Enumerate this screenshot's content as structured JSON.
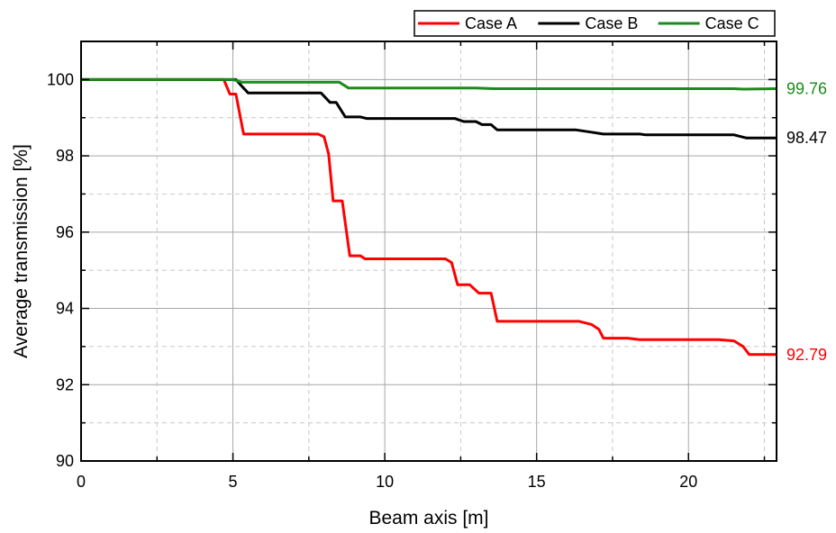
{
  "chart_data": {
    "type": "line",
    "title": "",
    "xlabel": "Beam axis [m]",
    "ylabel": "Average transmission [%]",
    "xlim": [
      0,
      22.9
    ],
    "ylim": [
      90,
      101
    ],
    "x_ticks": [
      0,
      5,
      10,
      15,
      20
    ],
    "y_ticks": [
      90,
      92,
      94,
      96,
      98,
      100
    ],
    "x_minor_ticks": [
      2.5,
      7.5,
      12.5,
      17.5,
      22.5
    ],
    "y_minor_ticks": [
      91,
      93,
      95,
      97,
      99
    ],
    "grid": true,
    "legend_position": "top-right",
    "series": [
      {
        "name": "Case A",
        "color": "#ff0000",
        "end_label": "92.79",
        "points": [
          [
            0,
            100
          ],
          [
            4.7,
            100
          ],
          [
            4.9,
            99.62
          ],
          [
            5.1,
            99.62
          ],
          [
            5.35,
            98.57
          ],
          [
            7.8,
            98.57
          ],
          [
            8.0,
            98.5
          ],
          [
            8.15,
            98.05
          ],
          [
            8.3,
            96.82
          ],
          [
            8.6,
            96.82
          ],
          [
            8.85,
            95.38
          ],
          [
            9.2,
            95.38
          ],
          [
            9.35,
            95.3
          ],
          [
            12.0,
            95.3
          ],
          [
            12.2,
            95.2
          ],
          [
            12.4,
            94.62
          ],
          [
            12.8,
            94.62
          ],
          [
            13.1,
            94.4
          ],
          [
            13.5,
            94.4
          ],
          [
            13.7,
            93.66
          ],
          [
            16.4,
            93.66
          ],
          [
            16.8,
            93.58
          ],
          [
            17.05,
            93.45
          ],
          [
            17.2,
            93.22
          ],
          [
            18.0,
            93.22
          ],
          [
            18.4,
            93.18
          ],
          [
            21.0,
            93.18
          ],
          [
            21.5,
            93.15
          ],
          [
            21.8,
            93.0
          ],
          [
            22.0,
            92.79
          ],
          [
            22.9,
            92.79
          ]
        ]
      },
      {
        "name": "Case B",
        "color": "#000000",
        "end_label": "98.47",
        "points": [
          [
            0,
            100
          ],
          [
            5.1,
            100
          ],
          [
            5.3,
            99.82
          ],
          [
            5.5,
            99.65
          ],
          [
            7.9,
            99.65
          ],
          [
            8.2,
            99.4
          ],
          [
            8.4,
            99.4
          ],
          [
            8.7,
            99.02
          ],
          [
            9.2,
            99.02
          ],
          [
            9.4,
            98.98
          ],
          [
            12.3,
            98.98
          ],
          [
            12.6,
            98.9
          ],
          [
            13.0,
            98.9
          ],
          [
            13.2,
            98.82
          ],
          [
            13.5,
            98.82
          ],
          [
            13.7,
            98.68
          ],
          [
            16.3,
            98.68
          ],
          [
            16.8,
            98.62
          ],
          [
            17.2,
            98.57
          ],
          [
            18.4,
            98.57
          ],
          [
            18.6,
            98.55
          ],
          [
            21.5,
            98.55
          ],
          [
            21.9,
            98.47
          ],
          [
            22.9,
            98.47
          ]
        ]
      },
      {
        "name": "Case C",
        "color": "#1c8a1c",
        "end_label": "99.76",
        "points": [
          [
            0,
            100
          ],
          [
            5.0,
            100
          ],
          [
            5.3,
            99.93
          ],
          [
            8.5,
            99.93
          ],
          [
            8.8,
            99.78
          ],
          [
            13.0,
            99.78
          ],
          [
            13.6,
            99.76
          ],
          [
            21.5,
            99.76
          ],
          [
            21.8,
            99.75
          ],
          [
            22.9,
            99.76
          ]
        ]
      }
    ]
  }
}
